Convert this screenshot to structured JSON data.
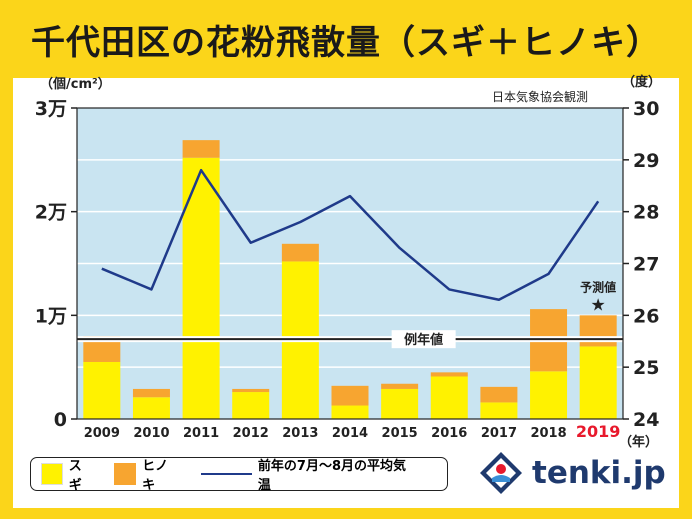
{
  "title": "千代田区の花粉飛散量（スギ＋ヒノキ）",
  "left_unit": "（個/cm²）",
  "right_unit": "（度）",
  "source": "日本気象協会観測",
  "year_unit": "（年）",
  "forecast_label": "予測値",
  "reference_label": "例年値",
  "legend": {
    "sugi": "スギ",
    "hinoki": "ヒノキ",
    "temp": "前年の7月〜8月の平均気温"
  },
  "logo": {
    "text": "tenki.jp"
  },
  "colors": {
    "sugi": "#fff200",
    "hinoki": "#f7a530",
    "temp_line": "#1f3a8a",
    "plot_bg": "#c9e4f1",
    "highlight_year": "#e8192c"
  },
  "chart_data": {
    "type": "bar",
    "categories": [
      "2009",
      "2010",
      "2011",
      "2012",
      "2013",
      "2014",
      "2015",
      "2016",
      "2017",
      "2018",
      "2019"
    ],
    "series": [
      {
        "name": "スギ",
        "values": [
          5500,
          2100,
          25200,
          2600,
          15200,
          1300,
          2900,
          4100,
          1600,
          4600,
          7000
        ]
      },
      {
        "name": "ヒノキ",
        "values": [
          2500,
          800,
          1700,
          300,
          1700,
          1900,
          500,
          400,
          1500,
          6000,
          3000
        ]
      },
      {
        "name": "前年の7月〜8月の平均気温",
        "axis": "right",
        "type": "line",
        "values": [
          26.9,
          26.5,
          28.8,
          27.4,
          27.8,
          28.3,
          27.3,
          26.5,
          26.3,
          26.8,
          28.2
        ]
      }
    ],
    "reference_value": 7700,
    "forecast_category": "2019",
    "left_axis": {
      "ylim": [
        0,
        30000
      ],
      "ticks": [
        0,
        10000,
        20000,
        30000
      ],
      "tick_labels": [
        "0",
        "1万",
        "2万",
        "3万"
      ]
    },
    "right_axis": {
      "ylim": [
        24,
        30
      ],
      "ticks": [
        24,
        25,
        26,
        27,
        28,
        29,
        30
      ],
      "tick_labels": [
        "24",
        "25",
        "26",
        "27",
        "28",
        "29",
        "30"
      ]
    },
    "grid": true,
    "legend_position": "bottom-left"
  }
}
